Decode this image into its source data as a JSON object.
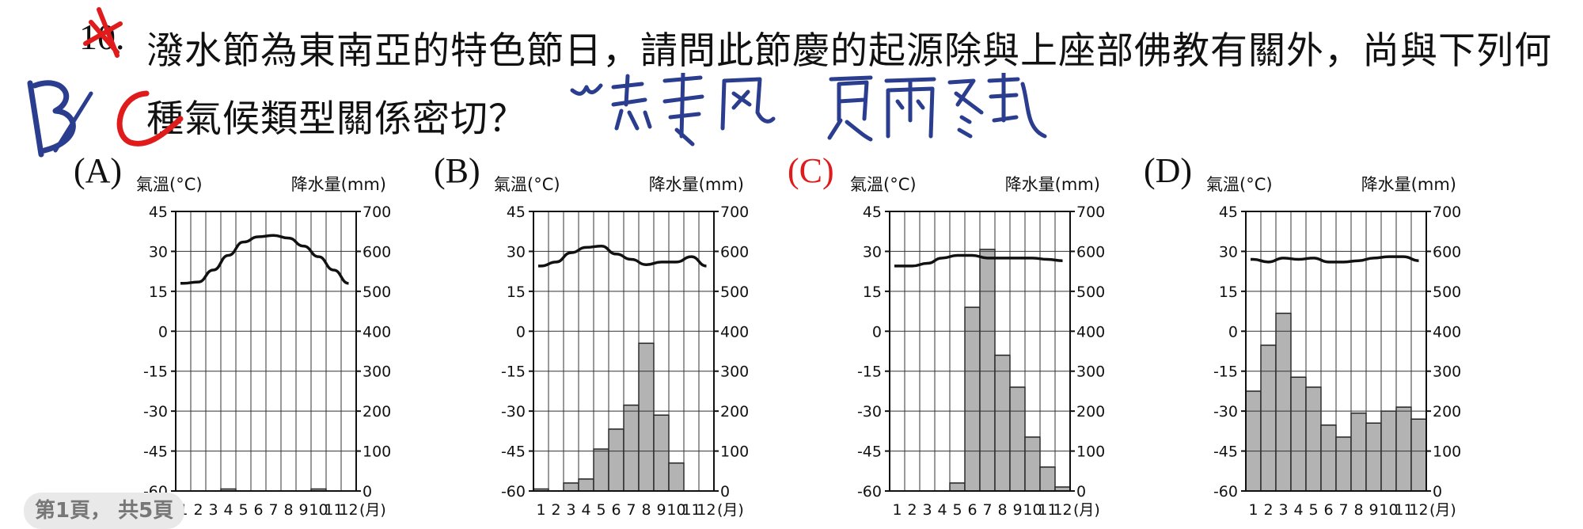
{
  "question": {
    "number": "10.",
    "text": "潑水節為東南亞的特色節日，請問此節慶的起源除與上座部佛教有關外，尚與下列何種氣候類型關係密切？"
  },
  "handwriting": {
    "answer_mark": "B C",
    "note_1": "熱季風",
    "note_2": "夏雨冬乾"
  },
  "page_indicator": "第1頁， 共5頁",
  "axis_text": {
    "temp_label": "氣溫(°C)",
    "precip_label": "降水量(mm)",
    "month_unit": "(月)",
    "left_ticks": [
      "45",
      "30",
      "15",
      "0",
      "-15",
      "-30",
      "-45",
      "-60"
    ],
    "right_ticks": [
      "700",
      "600",
      "500",
      "400",
      "300",
      "200",
      "100",
      "0"
    ],
    "months": [
      "1",
      "2",
      "3",
      "4",
      "5",
      "6",
      "7",
      "8",
      "9",
      "10",
      "11",
      "12"
    ]
  },
  "colors": {
    "bar_fill": "#b3b3b3",
    "line": "#111111",
    "highlight_label": "#e01b1b",
    "ink_blue": "#2a3d8f",
    "ink_red": "#e01b1b"
  },
  "chart_data": [
    {
      "option": "(A)",
      "type": "bar+line",
      "highlighted": false,
      "temperature": [
        18,
        18.5,
        23,
        28.5,
        33.5,
        35.5,
        36,
        35,
        32,
        28,
        23,
        18
      ],
      "precipitation": [
        0,
        0,
        0,
        5,
        0,
        0,
        0,
        0,
        0,
        5,
        0,
        0
      ],
      "ylim_temp": [
        -60,
        45
      ],
      "ylim_precip": [
        0,
        700
      ]
    },
    {
      "option": "(B)",
      "type": "bar+line",
      "highlighted": false,
      "temperature": [
        24.5,
        26,
        29.5,
        31.5,
        32,
        29,
        27,
        25,
        26,
        26,
        28,
        24.5
      ],
      "precipitation": [
        5,
        0,
        20,
        30,
        105,
        155,
        215,
        370,
        190,
        70,
        0,
        0
      ],
      "ylim_temp": [
        -60,
        45
      ],
      "ylim_precip": [
        0,
        700
      ]
    },
    {
      "option": "(C)",
      "type": "bar+line",
      "highlighted": true,
      "temperature": [
        24.5,
        24.5,
        25.5,
        27.5,
        28.5,
        28.5,
        27.5,
        27.5,
        27.5,
        27.5,
        27,
        26.5
      ],
      "precipitation": [
        0,
        0,
        0,
        0,
        20,
        460,
        605,
        340,
        260,
        135,
        60,
        10
      ],
      "ylim_temp": [
        -60,
        45
      ],
      "ylim_precip": [
        0,
        700
      ]
    },
    {
      "option": "(D)",
      "type": "bar+line",
      "highlighted": false,
      "temperature": [
        27,
        26,
        27.5,
        27,
        27.5,
        26,
        26,
        26.5,
        27.5,
        28,
        28,
        26.5
      ],
      "precipitation": [
        250,
        365,
        445,
        285,
        260,
        165,
        135,
        195,
        170,
        200,
        210,
        180
      ],
      "ylim_temp": [
        -60,
        45
      ],
      "ylim_precip": [
        0,
        700
      ]
    }
  ]
}
